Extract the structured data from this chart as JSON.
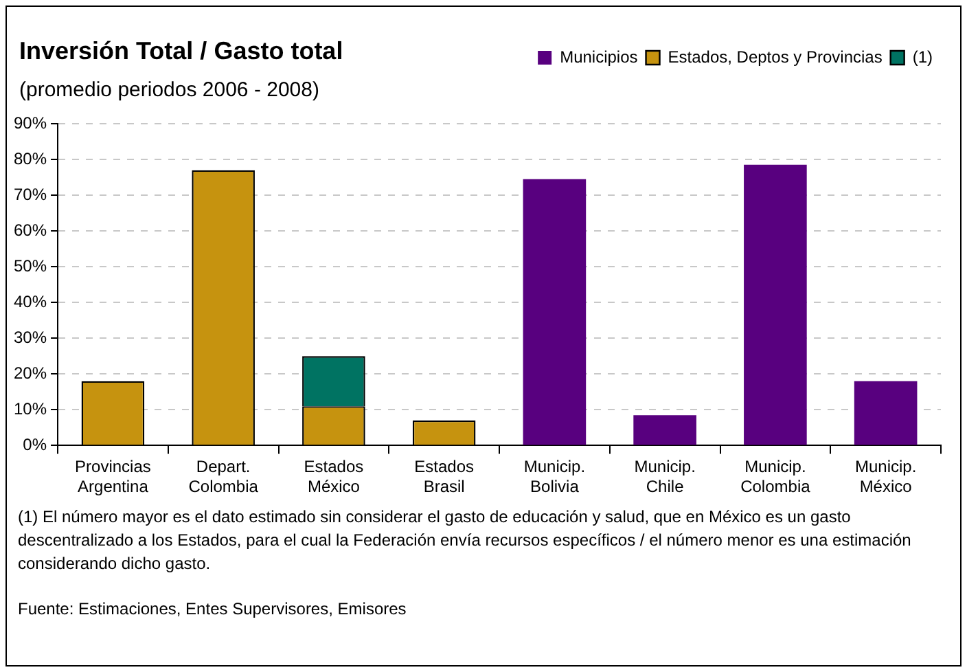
{
  "chart_data": {
    "type": "bar",
    "title": "Inversión Total / Gasto total",
    "subtitle": "(promedio periodos 2006 - 2008)",
    "categories": [
      "Provincias Argentina",
      "Depart. Colombia",
      "Estados México",
      "Estados Brasil",
      "Municip. Bolivia",
      "Municip. Chile",
      "Municip. Colombia",
      "Municip. México"
    ],
    "stacked": true,
    "series": [
      {
        "name": "Municipios",
        "color": "#58007f",
        "values": [
          null,
          null,
          null,
          null,
          74.5,
          8.5,
          78.5,
          18
        ]
      },
      {
        "name": "Estados, Deptos y Provincias",
        "color": "#c6930f",
        "values": [
          18,
          77,
          11,
          7,
          null,
          null,
          null,
          null
        ]
      },
      {
        "name": "(1)",
        "color": "#007362",
        "values": [
          null,
          null,
          14,
          null,
          null,
          null,
          null,
          null
        ]
      }
    ],
    "ylim": [
      0,
      90
    ],
    "yticks": [
      {
        "value": 0,
        "label": "0%"
      },
      {
        "value": 10,
        "label": "10%"
      },
      {
        "value": 20,
        "label": "20%"
      },
      {
        "value": 30,
        "label": "30%"
      },
      {
        "value": 40,
        "label": "40%"
      },
      {
        "value": 50,
        "label": "50%"
      },
      {
        "value": 60,
        "label": "60%"
      },
      {
        "value": 70,
        "label": "70%"
      },
      {
        "value": 80,
        "label": "80%"
      },
      {
        "value": 90,
        "label": "90%"
      }
    ],
    "grid": "y",
    "legend": "top right",
    "annotations": [
      "(1) El número mayor es el dato estimado sin considerar el gasto de educación y salud, que en México es un gasto descentralizado a los Estados, para el cual la Federación envía recursos específicos / el número menor es una estimación considerando dicho gasto.",
      "Fuente: Estimaciones, Entes Supervisores, Emisores"
    ]
  }
}
